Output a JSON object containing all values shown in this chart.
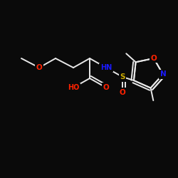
{
  "background_color": "#0a0a0a",
  "bond_color": "#e8e8e8",
  "atom_colors": {
    "O": "#ff2200",
    "N": "#1a1aff",
    "S": "#ccaa00",
    "C": "#e8e8e8"
  },
  "figsize": [
    2.5,
    2.5
  ],
  "dpi": 100
}
